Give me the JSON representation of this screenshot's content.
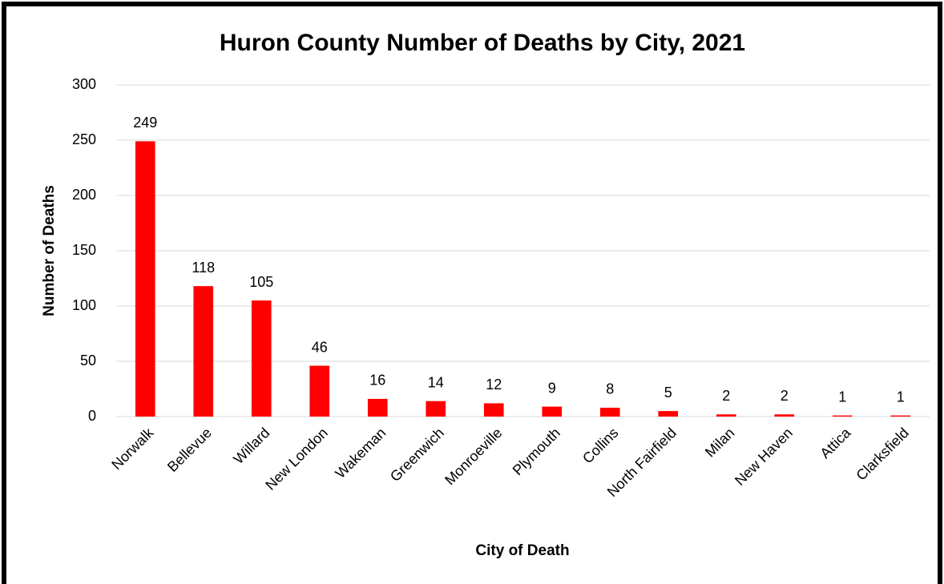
{
  "chart_data": {
    "type": "bar",
    "title": "Huron County Number of Deaths by City, 2021",
    "x_label": "City of Death",
    "y_label": "Number of Deaths",
    "categories": [
      "Norwalk",
      "Bellevue",
      "Willard",
      "New London",
      "Wakeman",
      "Greenwich",
      "Monroeville",
      "Plymouth",
      "Collins",
      "North Fairfield",
      "Milan",
      "New Haven",
      "Attica",
      "Clarksfield"
    ],
    "values": [
      249,
      118,
      105,
      46,
      16,
      14,
      12,
      9,
      8,
      5,
      2,
      2,
      1,
      1
    ],
    "color": "#ff0000",
    "ylim": [
      0,
      300
    ],
    "yticks": [
      0,
      50,
      100,
      150,
      200,
      250,
      300
    ],
    "grid": true
  }
}
